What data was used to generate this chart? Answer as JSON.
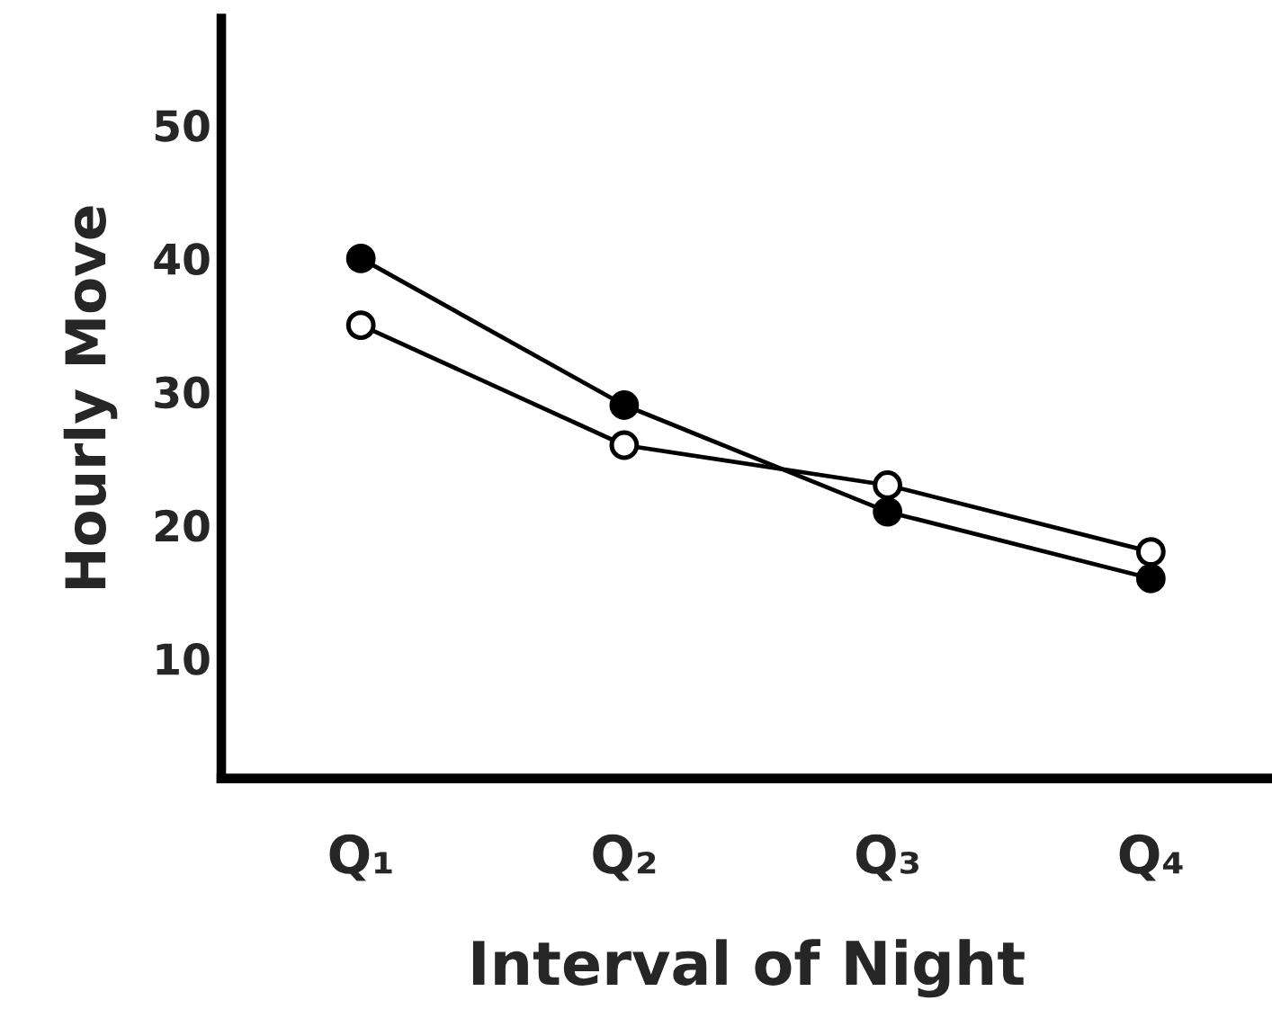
{
  "chart_data": {
    "type": "line",
    "xlabel": "Interval of Night",
    "ylabel": "Hourly Move",
    "categories": [
      "Q₁",
      "Q₂",
      "Q₃",
      "Q₄"
    ],
    "series": [
      {
        "color": "#000000",
        "values": [
          40,
          29,
          21,
          16
        ]
      },
      {
        "color": "#000000",
        "colors": [
          "#ffffff",
          "#ffffff",
          "#ffffff",
          "#ffffff"
        ],
        "values": [
          35,
          26,
          23,
          18
        ]
      }
    ],
    "ylim": [
      1,
      58
    ],
    "yticks": [
      10,
      20,
      30,
      40,
      50
    ],
    "marker": "circle"
  }
}
